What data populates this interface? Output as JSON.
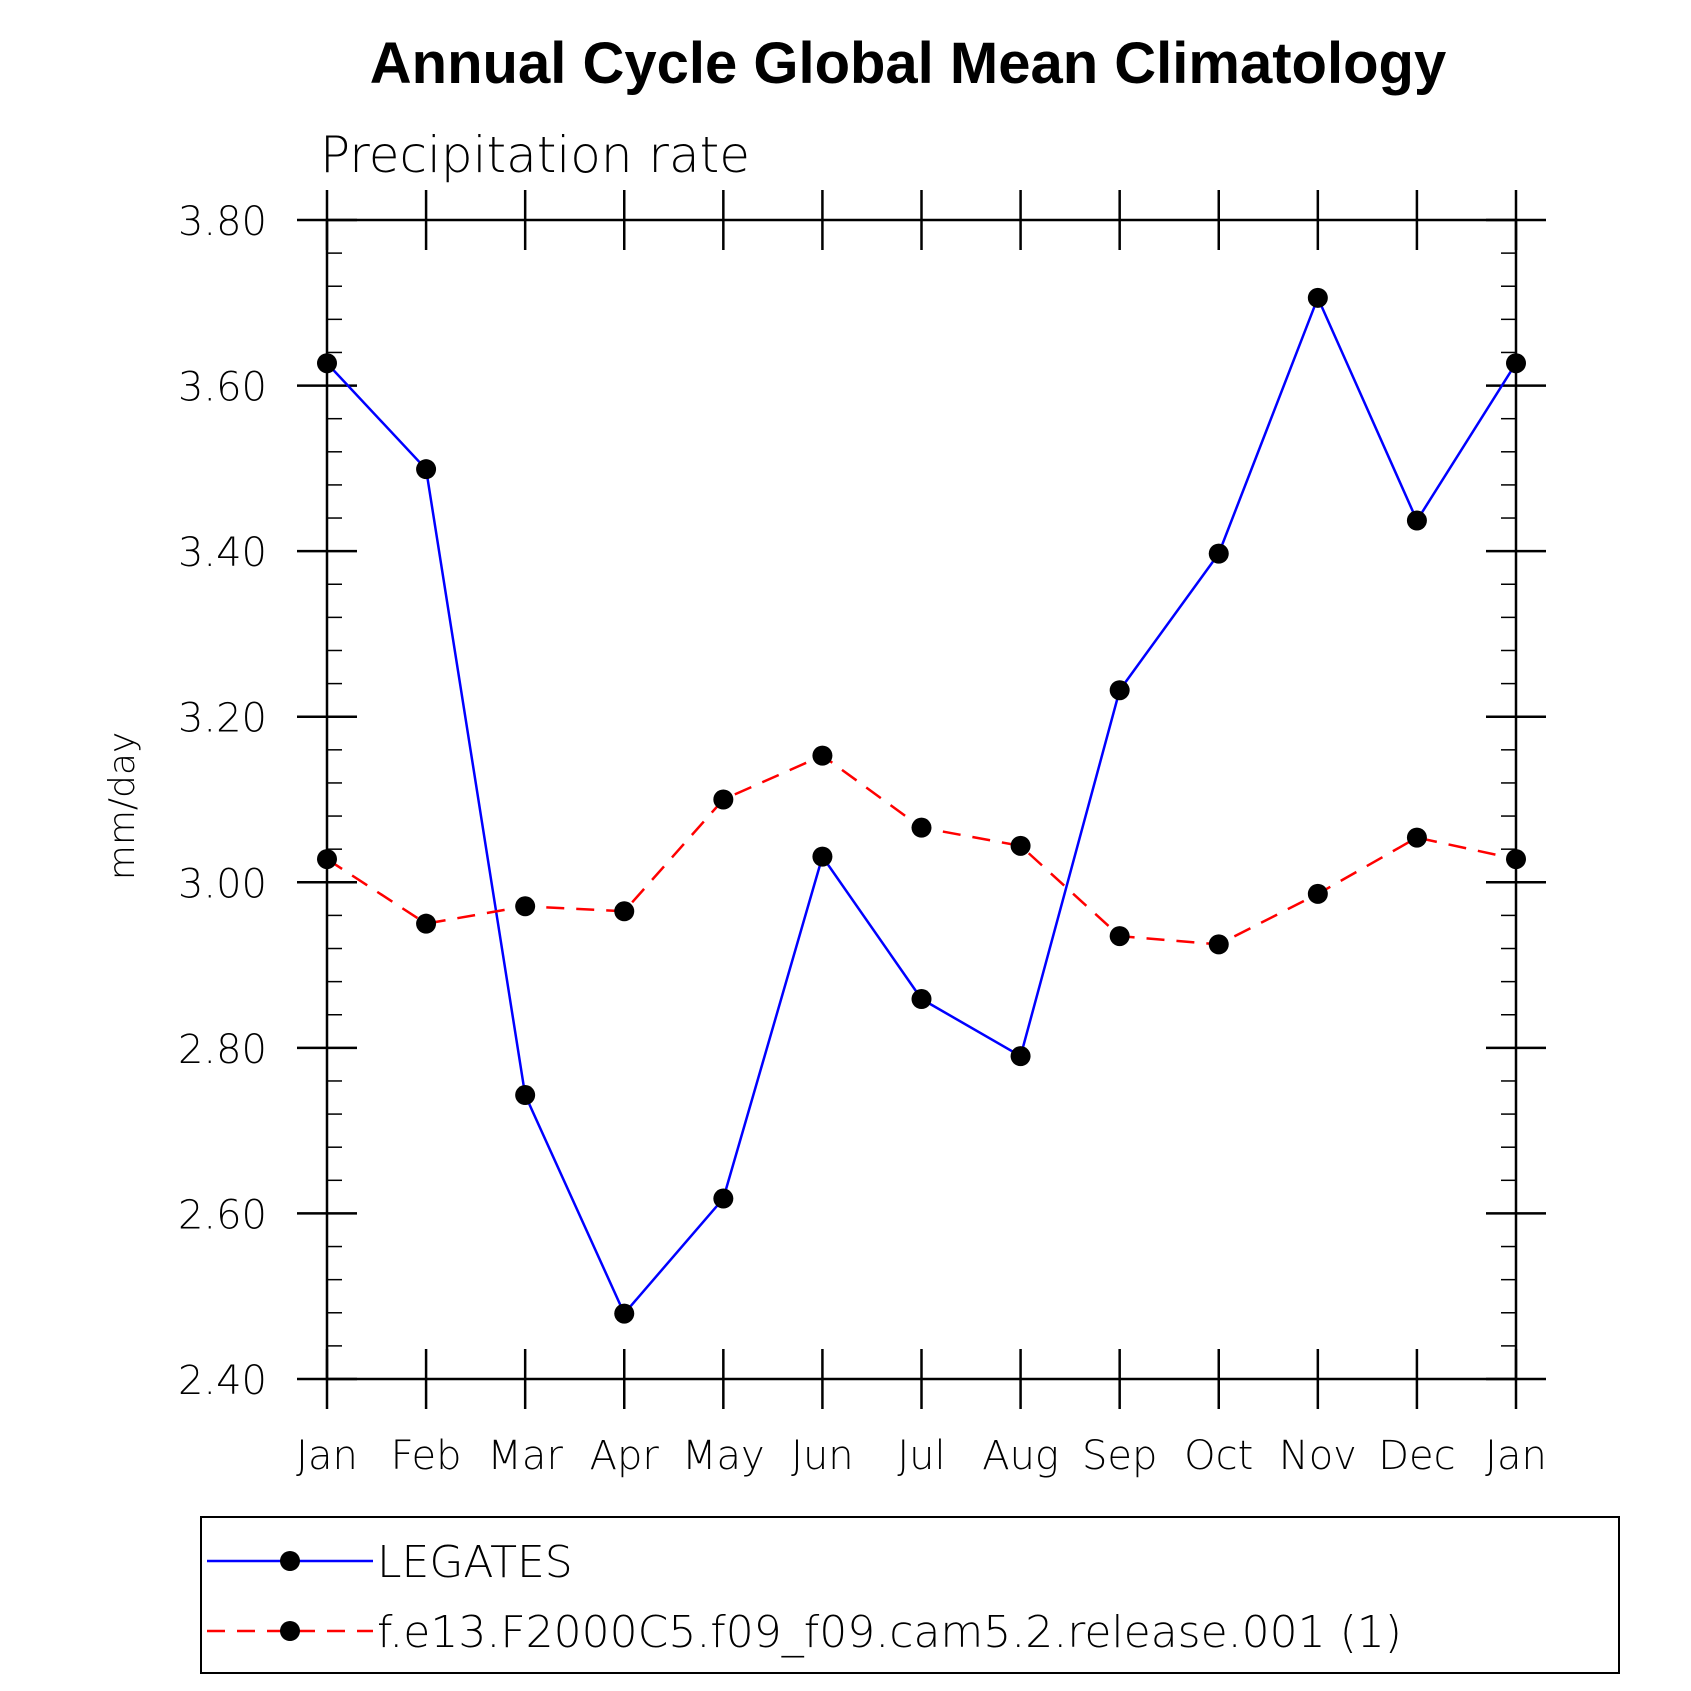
{
  "chart_data": {
    "type": "line",
    "title": "Annual Cycle Global Mean Climatology",
    "subtitle": "Precipitation rate",
    "ylabel": "mm/day",
    "xlabel": "",
    "categories": [
      "Jan",
      "Feb",
      "Mar",
      "Apr",
      "May",
      "Jun",
      "Jul",
      "Aug",
      "Sep",
      "Oct",
      "Nov",
      "Dec",
      "Jan"
    ],
    "ylim": [
      2.4,
      3.8
    ],
    "yticks": [
      "2.40",
      "2.60",
      "2.80",
      "3.00",
      "3.20",
      "3.40",
      "3.60",
      "3.80"
    ],
    "grid": false,
    "legend_position": "bottom",
    "series": [
      {
        "name": "LEGATES",
        "color": "#0000ff",
        "line_style": "solid",
        "marker": "filled-circle",
        "values": [
          3.627,
          3.499,
          2.743,
          2.479,
          2.618,
          3.031,
          2.859,
          2.79,
          3.232,
          3.397,
          3.706,
          3.437,
          3.627
        ]
      },
      {
        "name": "f.e13.F2000C5.f09_f09.cam5.2.release.001 (1)",
        "color": "#ff0000",
        "line_style": "dashed",
        "marker": "filled-circle",
        "values": [
          3.028,
          2.95,
          2.971,
          2.965,
          3.1,
          3.153,
          3.066,
          3.044,
          2.935,
          2.925,
          2.986,
          3.054,
          3.028
        ]
      }
    ]
  }
}
